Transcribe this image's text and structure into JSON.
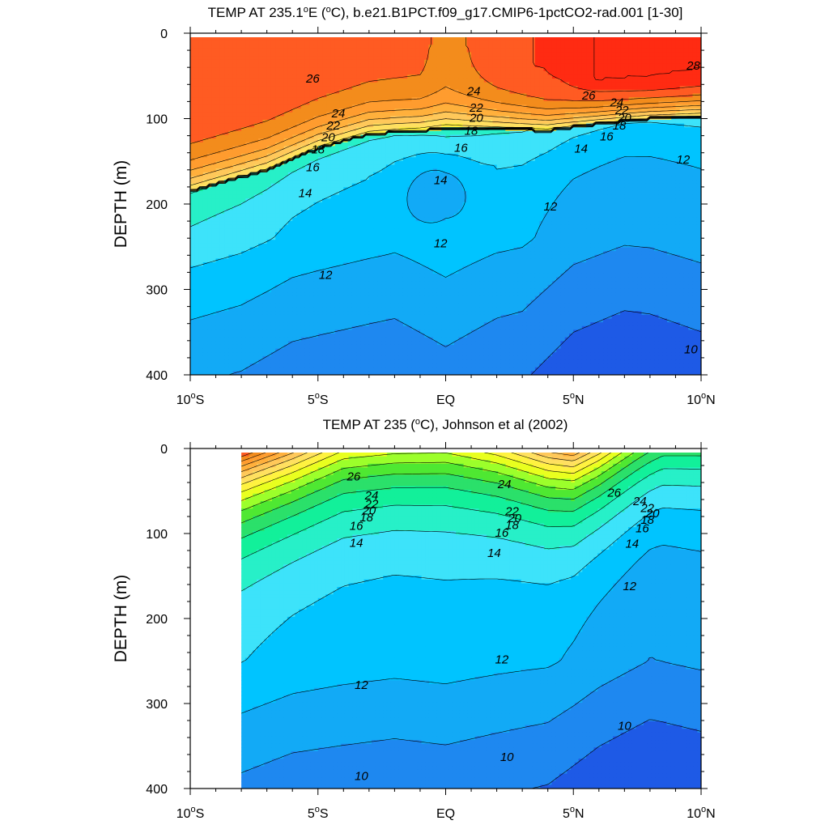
{
  "chart_data": [
    {
      "type": "contour",
      "title": "TEMP AT 235.1°E (°C), b.e21.B1PCT.f09_g17.CMIP6-1pctCO2-rad.001 [1-30]",
      "title_parts": {
        "pre": "TEMP AT 235.1",
        "deg1": "o",
        "mid": "E (",
        "deg2": "o",
        "post": "C), b.e21.B1PCT.f09_g17.CMIP6-1pctCO2-rad.001 [1-30]"
      },
      "xlabel": "",
      "ylabel": "DEPTH (m)",
      "x_ticks": [
        {
          "v": -10,
          "label": "10",
          "sup": "o",
          "suffix": "S"
        },
        {
          "v": -5,
          "label": "5",
          "sup": "o",
          "suffix": "S"
        },
        {
          "v": 0,
          "label": "EQ",
          "sup": "",
          "suffix": ""
        },
        {
          "v": 5,
          "label": "5",
          "sup": "o",
          "suffix": "N"
        },
        {
          "v": 10,
          "label": "10",
          "sup": "o",
          "suffix": "N"
        }
      ],
      "y_ticks": [
        "0",
        "100",
        "200",
        "300",
        "400"
      ],
      "y_tick_values": [
        0,
        100,
        200,
        300,
        400
      ],
      "xlim": [
        -10,
        10
      ],
      "ylim": [
        400,
        0
      ],
      "data_xlim": [
        -10,
        10
      ],
      "levels": [
        10,
        11,
        12,
        13,
        14,
        15,
        16,
        17,
        18,
        19,
        20,
        21,
        22,
        23,
        24,
        25,
        26,
        27,
        28
      ],
      "contour_labels": [
        {
          "text": "26",
          "x": -5.2,
          "y": 53
        },
        {
          "text": "24",
          "x": 1.1,
          "y": 68
        },
        {
          "text": "22",
          "x": 1.2,
          "y": 87
        },
        {
          "text": "20",
          "x": 1.2,
          "y": 99
        },
        {
          "text": "18",
          "x": 1.0,
          "y": 114
        },
        {
          "text": "16",
          "x": 0.6,
          "y": 134
        },
        {
          "text": "14",
          "x": -0.2,
          "y": 172
        },
        {
          "text": "24",
          "x": -4.2,
          "y": 94
        },
        {
          "text": "22",
          "x": -4.4,
          "y": 108
        },
        {
          "text": "20",
          "x": -4.6,
          "y": 122
        },
        {
          "text": "18",
          "x": -5.0,
          "y": 136
        },
        {
          "text": "16",
          "x": -5.2,
          "y": 157
        },
        {
          "text": "14",
          "x": -5.5,
          "y": 187
        },
        {
          "text": "12",
          "x": -4.7,
          "y": 283
        },
        {
          "text": "12",
          "x": -0.2,
          "y": 246
        },
        {
          "text": "12",
          "x": 4.1,
          "y": 203
        },
        {
          "text": "26",
          "x": 5.6,
          "y": 73
        },
        {
          "text": "24",
          "x": 6.7,
          "y": 81
        },
        {
          "text": "22",
          "x": 6.9,
          "y": 90
        },
        {
          "text": "20",
          "x": 7.0,
          "y": 99
        },
        {
          "text": "18",
          "x": 6.8,
          "y": 108
        },
        {
          "text": "16",
          "x": 6.3,
          "y": 121
        },
        {
          "text": "14",
          "x": 5.3,
          "y": 135
        },
        {
          "text": "12",
          "x": 9.3,
          "y": 148
        },
        {
          "text": "28",
          "x": 9.7,
          "y": 38
        },
        {
          "text": "10",
          "x": 9.6,
          "y": 370
        }
      ]
    },
    {
      "type": "contour",
      "title": "TEMP AT 235 (°C), Johnson et al (2002)",
      "title_parts": {
        "pre": "TEMP AT 235 (",
        "deg1": "o",
        "mid": "C), Johnson et al (2002)",
        "deg2": "",
        "post": ""
      },
      "xlabel": "",
      "ylabel": "DEPTH (m)",
      "x_ticks": [
        {
          "v": -10,
          "label": "10",
          "sup": "o",
          "suffix": "S"
        },
        {
          "v": -5,
          "label": "5",
          "sup": "o",
          "suffix": "S"
        },
        {
          "v": 0,
          "label": "EQ",
          "sup": "",
          "suffix": ""
        },
        {
          "v": 5,
          "label": "5",
          "sup": "o",
          "suffix": "N"
        },
        {
          "v": 10,
          "label": "10",
          "sup": "o",
          "suffix": "N"
        }
      ],
      "y_ticks": [
        "0",
        "100",
        "200",
        "300",
        "400"
      ],
      "y_tick_values": [
        0,
        100,
        200,
        300,
        400
      ],
      "xlim": [
        -10,
        10
      ],
      "ylim": [
        400,
        0
      ],
      "data_xlim": [
        -8,
        10
      ],
      "levels": [
        10,
        11,
        12,
        13,
        14,
        15,
        16,
        17,
        18,
        19,
        20,
        21,
        22,
        23,
        24,
        25,
        26,
        27
      ],
      "contour_labels": [
        {
          "text": "26",
          "x": -3.6,
          "y": 33
        },
        {
          "text": "24",
          "x": -2.9,
          "y": 55
        },
        {
          "text": "22",
          "x": -2.9,
          "y": 65
        },
        {
          "text": "20",
          "x": -3.0,
          "y": 73
        },
        {
          "text": "18",
          "x": -3.1,
          "y": 81
        },
        {
          "text": "16",
          "x": -3.5,
          "y": 91
        },
        {
          "text": "14",
          "x": -3.5,
          "y": 111
        },
        {
          "text": "24",
          "x": 2.3,
          "y": 42
        },
        {
          "text": "22",
          "x": 2.6,
          "y": 74
        },
        {
          "text": "20",
          "x": 2.7,
          "y": 82
        },
        {
          "text": "18",
          "x": 2.6,
          "y": 90
        },
        {
          "text": "16",
          "x": 2.2,
          "y": 99
        },
        {
          "text": "14",
          "x": 1.9,
          "y": 123
        },
        {
          "text": "26",
          "x": 6.6,
          "y": 52
        },
        {
          "text": "24",
          "x": 7.6,
          "y": 62
        },
        {
          "text": "22",
          "x": 7.9,
          "y": 70
        },
        {
          "text": "20",
          "x": 8.1,
          "y": 76
        },
        {
          "text": "18",
          "x": 7.9,
          "y": 84
        },
        {
          "text": "16",
          "x": 7.7,
          "y": 94
        },
        {
          "text": "14",
          "x": 7.3,
          "y": 112
        },
        {
          "text": "12",
          "x": 7.2,
          "y": 162
        },
        {
          "text": "12",
          "x": -3.3,
          "y": 278
        },
        {
          "text": "12",
          "x": 2.2,
          "y": 248
        },
        {
          "text": "10",
          "x": 2.4,
          "y": 363
        },
        {
          "text": "10",
          "x": -3.3,
          "y": 385
        },
        {
          "text": "10",
          "x": 7.0,
          "y": 326
        }
      ]
    }
  ],
  "colors": {
    "level_fill": [
      "#1e5ae6",
      "#1e88f0",
      "#12aaf6",
      "#00c4ff",
      "#3de3fa",
      "#27f0c8",
      "#12f09a",
      "#2be06a",
      "#4fe832",
      "#9cff2b",
      "#e9ff1f",
      "#fff240",
      "#ffe060",
      "#ffc85a",
      "#ffb03c",
      "#ff9c2f",
      "#f38c1c",
      "#ff5b22",
      "#ff2b12"
    ]
  }
}
